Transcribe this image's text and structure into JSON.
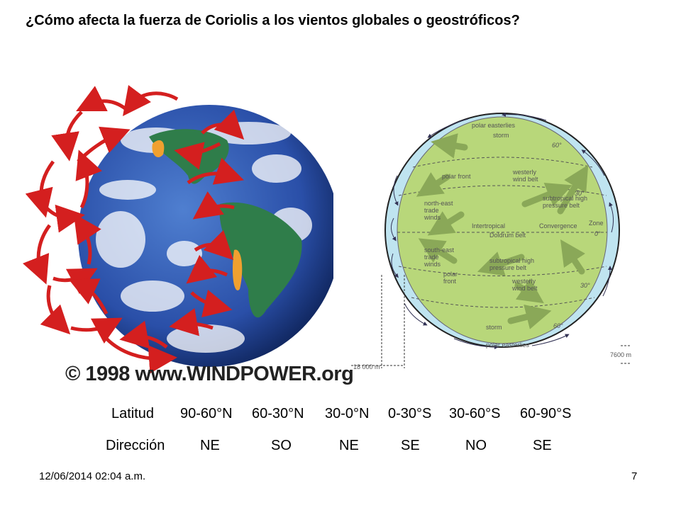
{
  "slide": {
    "title": "¿Cómo afecta la fuerza de Coriolis a los vientos globales  o geostróficos?",
    "date": "12/06/2014 02:04 a.m.",
    "page_number": "7"
  },
  "left_figure": {
    "copyright": "© 1998 www.WINDPOWER.org",
    "colors": {
      "ocean": "#2a4fa8",
      "land": "#2f7d4a",
      "arrows": "#d41f1f",
      "desert": "#f0a030"
    }
  },
  "right_figure": {
    "labels": {
      "polar_easterlies_top": "polar easterlies",
      "storm_top": "storm",
      "sixty_top": "60°",
      "polar_front_top": "polar front",
      "westerly_wind_belt_top": "westerly\nwind belt",
      "thirty_top": "30°",
      "subtropical_high_top": "subtropical high\npressure belt",
      "north_east_trade": "north-east\ntrade\nwinds",
      "intertropical": "Intertropical",
      "convergence": "Convergence",
      "zone": "Zone",
      "zero": "0°",
      "doldrum_belt": "Doldrum belt",
      "south_east_trade": "south-east\ntrade\nwinds",
      "subtropical_high_bottom": "subtropical high\npressure belt",
      "polar_front_bottom": "polar\nfront",
      "westerly_wind_belt_bottom": "westerly\nwind belt",
      "thirty_bottom": "30°",
      "storm_bottom": "storm",
      "sixty_bottom": "60°",
      "polar_easterlies_bottom": "polar easterlies",
      "height_left": "18 000 m",
      "height_right": "7600 m"
    },
    "colors": {
      "atmosphere": "#bfe4f0",
      "earth": "#b8d77a",
      "arrows": "#8aa858",
      "outline": "#222222"
    }
  },
  "table": {
    "row1": [
      "Latitud",
      "90-60°N",
      "60-30°N",
      "30-0°N",
      "0-30°S",
      "30-60°S",
      "60-90°S"
    ],
    "row2": [
      "Dirección",
      "NE",
      "SO",
      "NE",
      "SE",
      "NO",
      "SE"
    ]
  }
}
